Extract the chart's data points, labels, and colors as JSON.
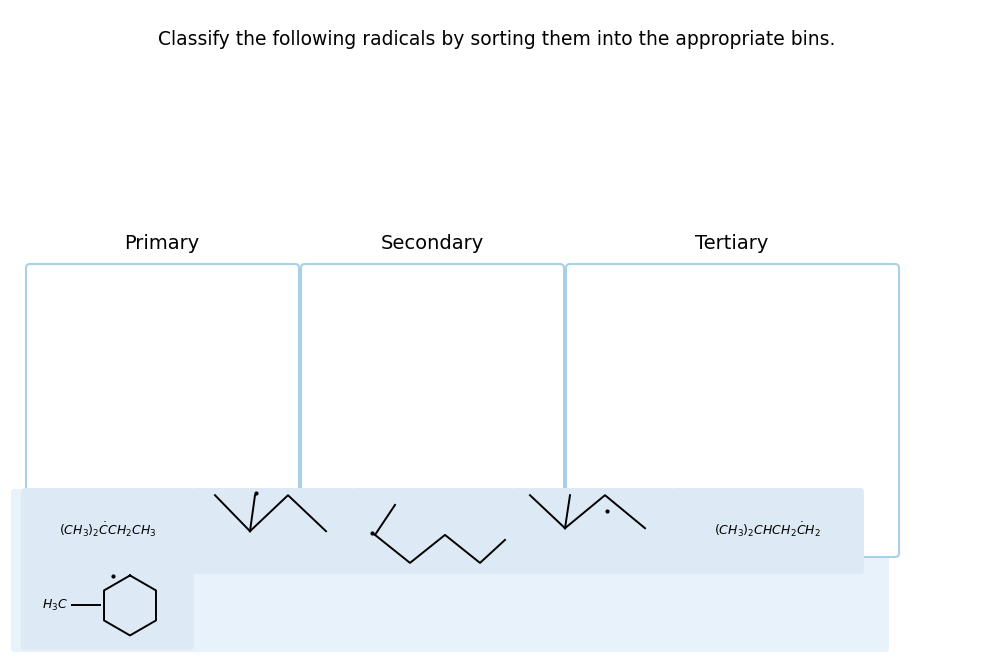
{
  "title": "Classify the following radicals by sorting them into the appropriate bins.",
  "title_fontsize": 13.5,
  "bin_labels": [
    "Primary",
    "Secondary",
    "Tertiary"
  ],
  "bin_label_fontsize": 14,
  "background_color": "#ffffff",
  "bin_border_color": "#a8d0e8",
  "bin_fill_color": "#ffffff",
  "card_fill_color": "#ddeaf5",
  "card_border_color": "#a8d0e8",
  "bottom_strip_color": "#e8f2fa",
  "formula1": "(CH₃)₂ČCH₂CH₃",
  "formula5": "(CH₃)₂CHCH₂ĊH₂"
}
